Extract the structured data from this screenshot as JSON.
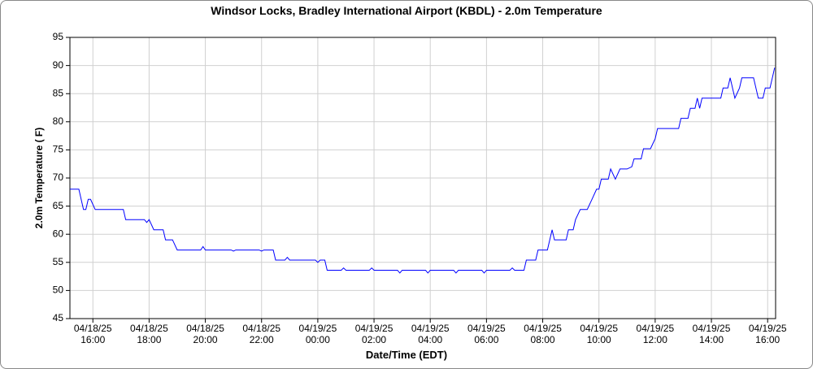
{
  "chart_data": {
    "type": "line",
    "title": "Windsor Locks, Bradley International Airport (KBDL) - 2.0m Temperature",
    "x_label": "Date/Time (EDT)",
    "y_label": "2.0m Temperature ( F)",
    "xlim": [
      "04/18/25 15:11",
      "04/19/25 16:17"
    ],
    "xticks": [
      "04/18/25 16:00",
      "04/18/25 18:00",
      "04/18/25 20:00",
      "04/18/25 22:00",
      "04/19/25 00:00",
      "04/19/25 02:00",
      "04/19/25 04:00",
      "04/19/25 06:00",
      "04/19/25 08:00",
      "04/19/25 10:00",
      "04/19/25 12:00",
      "04/19/25 14:00",
      "04/19/25 16:00"
    ],
    "ylim": [
      45,
      95
    ],
    "yticks": [
      45,
      50,
      55,
      60,
      65,
      70,
      75,
      80,
      85,
      90,
      95
    ],
    "grid": true,
    "x": [
      "04/18/25 15:11",
      "04/18/25 15:30",
      "04/18/25 15:40",
      "04/18/25 15:45",
      "04/18/25 15:50",
      "04/18/25 15:55",
      "04/18/25 16:05",
      "04/18/25 16:30",
      "04/18/25 17:05",
      "04/18/25 17:10",
      "04/18/25 17:50",
      "04/18/25 17:55",
      "04/18/25 18:00",
      "04/18/25 18:10",
      "04/18/25 18:30",
      "04/18/25 18:35",
      "04/18/25 18:50",
      "04/18/25 19:00",
      "04/18/25 19:50",
      "04/18/25 19:55",
      "04/18/25 20:00",
      "04/18/25 20:55",
      "04/18/25 21:00",
      "04/18/25 21:05",
      "04/18/25 21:55",
      "04/18/25 22:00",
      "04/18/25 22:05",
      "04/18/25 22:25",
      "04/18/25 22:30",
      "04/18/25 22:50",
      "04/18/25 22:55",
      "04/18/25 23:00",
      "04/18/25 23:55",
      "04/19/25 00:00",
      "04/19/25 00:05",
      "04/19/25 00:15",
      "04/19/25 00:20",
      "04/19/25 00:50",
      "04/19/25 00:55",
      "04/19/25 01:00",
      "04/19/25 01:50",
      "04/19/25 01:55",
      "04/19/25 02:00",
      "04/19/25 02:50",
      "04/19/25 02:55",
      "04/19/25 03:00",
      "04/19/25 03:50",
      "04/19/25 03:55",
      "04/19/25 04:00",
      "04/19/25 04:50",
      "04/19/25 04:55",
      "04/19/25 05:00",
      "04/19/25 05:50",
      "04/19/25 05:55",
      "04/19/25 06:00",
      "04/19/25 06:50",
      "04/19/25 06:55",
      "04/19/25 07:00",
      "04/19/25 07:20",
      "04/19/25 07:25",
      "04/19/25 07:45",
      "04/19/25 07:50",
      "04/19/25 08:10",
      "04/19/25 08:20",
      "04/19/25 08:25",
      "04/19/25 08:50",
      "04/19/25 08:55",
      "04/19/25 09:05",
      "04/19/25 09:10",
      "04/19/25 09:20",
      "04/19/25 09:35",
      "04/19/25 09:45",
      "04/19/25 09:55",
      "04/19/25 10:00",
      "04/19/25 10:05",
      "04/19/25 10:20",
      "04/19/25 10:25",
      "04/19/25 10:35",
      "04/19/25 10:45",
      "04/19/25 11:00",
      "04/19/25 11:10",
      "04/19/25 11:15",
      "04/19/25 11:30",
      "04/19/25 11:35",
      "04/19/25 11:50",
      "04/19/25 12:00",
      "04/19/25 12:05",
      "04/19/25 12:50",
      "04/19/25 12:55",
      "04/19/25 13:10",
      "04/19/25 13:15",
      "04/19/25 13:25",
      "04/19/25 13:30",
      "04/19/25 13:35",
      "04/19/25 13:40",
      "04/19/25 14:20",
      "04/19/25 14:25",
      "04/19/25 14:35",
      "04/19/25 14:40",
      "04/19/25 14:50",
      "04/19/25 15:00",
      "04/19/25 15:05",
      "04/19/25 15:30",
      "04/19/25 15:40",
      "04/19/25 15:50",
      "04/19/25 15:55",
      "04/19/25 16:05",
      "04/19/25 16:10",
      "04/19/25 16:15"
    ],
    "series": [
      {
        "name": "2.0m Temperature",
        "color": "#0000ff",
        "values": [
          68,
          68,
          64.4,
          64.4,
          66.2,
          66.2,
          64.4,
          64.4,
          64.4,
          62.6,
          62.6,
          62.1,
          62.6,
          60.8,
          60.8,
          59,
          59,
          57.2,
          57.2,
          57.8,
          57.2,
          57.2,
          57,
          57.2,
          57.2,
          57,
          57.2,
          57.2,
          55.4,
          55.4,
          55.9,
          55.4,
          55.4,
          55,
          55.4,
          55.4,
          53.6,
          53.6,
          54,
          53.6,
          53.6,
          54,
          53.6,
          53.6,
          53.1,
          53.6,
          53.6,
          53.1,
          53.6,
          53.6,
          53.1,
          53.6,
          53.6,
          53.1,
          53.6,
          53.6,
          54,
          53.6,
          53.6,
          55.4,
          55.4,
          57.2,
          57.2,
          60.8,
          59,
          59,
          60.8,
          60.8,
          62.6,
          64.4,
          64.4,
          66.2,
          68,
          68,
          69.8,
          69.8,
          71.6,
          69.8,
          71.6,
          71.6,
          72,
          73.4,
          73.4,
          75.2,
          75.2,
          77,
          78.8,
          78.8,
          80.6,
          80.6,
          82.4,
          82.4,
          84.2,
          82.4,
          84.2,
          84.2,
          86,
          86,
          87.8,
          84.2,
          86,
          87.8,
          87.8,
          84.2,
          84.2,
          86,
          86,
          87.8,
          89.6
        ]
      }
    ]
  }
}
